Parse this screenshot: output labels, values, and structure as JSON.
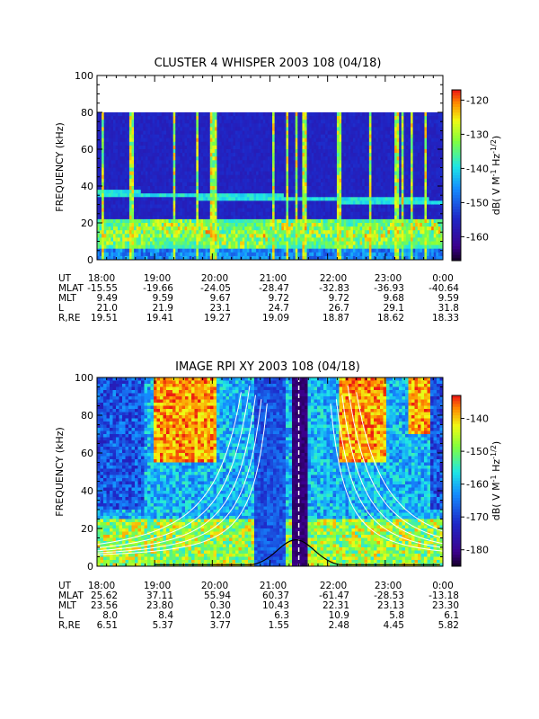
{
  "chart_data": [
    {
      "type": "heatmap",
      "title": "CLUSTER 4 WHISPER 2003 108 (04/18)",
      "ylabel": "FREQUENCY (kHz)",
      "ylim": [
        0,
        100
      ],
      "y_ticks": [
        "0",
        "20",
        "40",
        "60",
        "80",
        "100"
      ],
      "x_ticks": [
        "18:00",
        "19:00",
        "20:00",
        "21:00",
        "22:00",
        "23:00",
        "0:00"
      ],
      "colorbar": {
        "label": "dB( V M⁻¹ Hz⁻¹ᐟ²)",
        "label_parts": [
          "dB( V M",
          "-1",
          " Hz",
          "-1/2",
          ")"
        ],
        "range": [
          -167,
          -117
        ],
        "ticks": [
          "-120",
          "-130",
          "-140",
          "-150",
          "-160"
        ]
      },
      "data_top_khz": 80,
      "features": {
        "band_low_khz": [
          8,
          22
        ],
        "band_mid_khz": [
          36,
          31
        ],
        "vertical_spike_hours": [
          18.1,
          18.6,
          19.35,
          19.75,
          20.0,
          20.05,
          21.05,
          21.3,
          21.45,
          21.6,
          22.2,
          22.75,
          23.2,
          23.3,
          23.45,
          23.7
        ]
      },
      "table": {
        "row_labels": [
          "UT",
          "MLAT",
          "MLT",
          "L",
          "R,RE"
        ],
        "columns": [
          [
            "18:00",
            "-15.55",
            "9.49",
            "21.0",
            "19.51"
          ],
          [
            "19:00",
            "-19.66",
            "9.59",
            "21.9",
            "19.41"
          ],
          [
            "20:00",
            "-24.05",
            "9.67",
            "23.1",
            "19.27"
          ],
          [
            "21:00",
            "-28.47",
            "9.72",
            "24.7",
            "19.09"
          ],
          [
            "22:00",
            "-32.83",
            "9.72",
            "26.7",
            "18.87"
          ],
          [
            "23:00",
            "-36.93",
            "9.68",
            "29.1",
            "18.62"
          ],
          [
            "0:00",
            "-40.64",
            "9.59",
            "31.8",
            "18.33"
          ]
        ]
      }
    },
    {
      "type": "heatmap",
      "title": "IMAGE RPI XY 2003 108 (04/18)",
      "ylabel": "FREQUENCY (kHz)",
      "ylim": [
        0,
        100
      ],
      "y_ticks": [
        "0",
        "20",
        "40",
        "60",
        "80",
        "100"
      ],
      "x_ticks": [
        "18:00",
        "19:00",
        "20:00",
        "21:00",
        "22:00",
        "23:00",
        "0:00"
      ],
      "colorbar": {
        "label_parts": [
          "dB( V M",
          "-1",
          " Hz",
          "-1/2",
          ")"
        ],
        "range": [
          -185,
          -133
        ],
        "ticks": [
          "-140",
          "-150",
          "-160",
          "-170",
          "-180"
        ]
      },
      "features": {
        "dark_gap_hours": [
          21.4,
          21.65
        ],
        "dashed_line_hour": 21.5,
        "red_blocks": [
          [
            19.0,
            20.1,
            55,
            100
          ],
          [
            22.2,
            23.0,
            55,
            100
          ],
          [
            23.4,
            23.9,
            70,
            100
          ]
        ]
      },
      "table": {
        "row_labels": [
          "UT",
          "MLAT",
          "MLT",
          "L",
          "R,RE"
        ],
        "columns": [
          [
            "18:00",
            "25.62",
            "23.56",
            "8.0",
            "6.51"
          ],
          [
            "19:00",
            "37.11",
            "23.80",
            "8.4",
            "5.37"
          ],
          [
            "20:00",
            "55.94",
            "0.30",
            "12.0",
            "3.77"
          ],
          [
            "21:00",
            "60.37",
            "10.43",
            "6.3",
            "1.55"
          ],
          [
            "22:00",
            "-61.47",
            "22.31",
            "10.9",
            "2.48"
          ],
          [
            "23:00",
            "-28.53",
            "23.13",
            "5.8",
            "4.45"
          ],
          [
            "0:00",
            "-13.18",
            "23.30",
            "6.1",
            "5.82"
          ]
        ]
      }
    }
  ]
}
